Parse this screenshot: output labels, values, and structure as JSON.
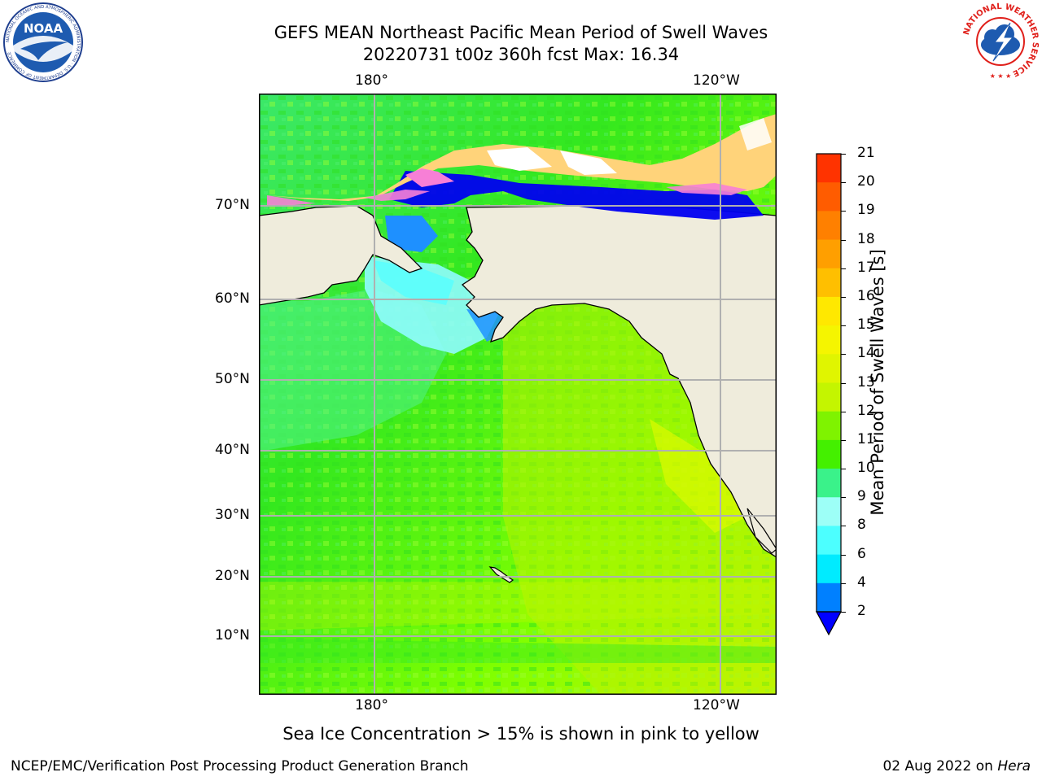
{
  "header": {
    "title_line1": "GEFS MEAN Northeast Pacific Mean Period of Swell Waves",
    "title_line2": "20220731 t00z 360h fcst   Max: 16.34"
  },
  "logos": {
    "left": "NOAA",
    "left_ring": "NATIONAL OCEANIC AND ATMOSPHERIC ADMINISTRATION · U.S. DEPARTMENT OF COMMERCE",
    "right_ring": "NATIONAL WEATHER SERVICE"
  },
  "map": {
    "lon_ticks_top": [
      "180°",
      "120°W"
    ],
    "lon_ticks_bottom": [
      "180°",
      "120°W"
    ],
    "lat_ticks": [
      "70°N",
      "60°N",
      "50°N",
      "40°N",
      "30°N",
      "20°N",
      "10°N"
    ],
    "colors": {
      "land": "#efecdc",
      "ice_pink": "#f77fd6",
      "ice_yellow": "#ffd37a",
      "ice_white": "#ffffff",
      "deep_blue": "#0000f0",
      "blue": "#1e90ff",
      "cyan": "#7ff9ff",
      "light_green": "#4ff77f",
      "green": "#33e81f",
      "lime": "#7fff00",
      "yellow_green": "#c8f700",
      "yellow": "#f0ff00"
    }
  },
  "colorbar": {
    "label": "Mean Period of Swell Waves [s]",
    "ticks": [
      "21",
      "20",
      "19",
      "18",
      "17",
      "16",
      "15",
      "14",
      "13",
      "12",
      "11",
      "10",
      "9",
      "8",
      "6",
      "4",
      "2"
    ],
    "colors_top_to_bottom": [
      "#ff0000",
      "#ff3300",
      "#ff5c00",
      "#ff8000",
      "#ff9f00",
      "#ffbf00",
      "#ffe800",
      "#f5f500",
      "#e0f500",
      "#c4f500",
      "#7ff300",
      "#44f000",
      "#3af28a",
      "#9dfff7",
      "#4cffff",
      "#00ebff",
      "#0080ff",
      "#0000ff"
    ]
  },
  "annotation": "Sea Ice Concentration > 15% is shown in pink to yellow",
  "footer": {
    "left": "NCEP/EMC/Verification Post Processing Product Generation Branch",
    "date": "02 Aug 2022 on ",
    "machine": "Hera"
  }
}
